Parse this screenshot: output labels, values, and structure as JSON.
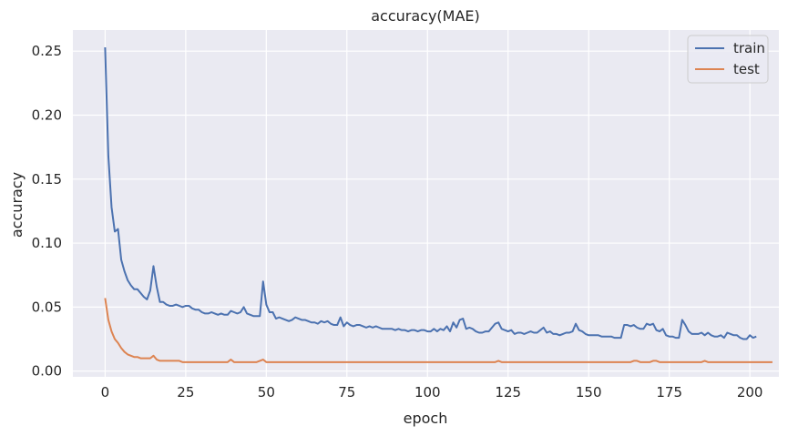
{
  "chart_data": {
    "type": "line",
    "title": "accuracy(MAE)",
    "xlabel": "epoch",
    "ylabel": "accuracy",
    "xlim": [
      -10,
      209
    ],
    "ylim": [
      -0.0045,
      0.2665
    ],
    "grid": true,
    "legend_placement": "top-right",
    "xticks": [
      0,
      25,
      50,
      75,
      100,
      125,
      150,
      175,
      200
    ],
    "yticks": [
      0.0,
      0.05,
      0.1,
      0.15,
      0.2,
      0.25
    ],
    "ytick_labels": [
      "0.00",
      "0.05",
      "0.10",
      "0.15",
      "0.20",
      "0.25"
    ],
    "series": [
      {
        "name": "train",
        "color": "#4c72b0",
        "x_start": 0,
        "x_step": 1,
        "values": [
          0.253,
          0.168,
          0.128,
          0.109,
          0.111,
          0.087,
          0.078,
          0.071,
          0.067,
          0.064,
          0.064,
          0.061,
          0.058,
          0.056,
          0.063,
          0.082,
          0.066,
          0.054,
          0.054,
          0.052,
          0.051,
          0.051,
          0.052,
          0.051,
          0.05,
          0.051,
          0.051,
          0.049,
          0.048,
          0.048,
          0.046,
          0.045,
          0.045,
          0.046,
          0.045,
          0.044,
          0.045,
          0.044,
          0.044,
          0.047,
          0.046,
          0.045,
          0.046,
          0.05,
          0.045,
          0.044,
          0.043,
          0.043,
          0.043,
          0.07,
          0.052,
          0.046,
          0.046,
          0.041,
          0.042,
          0.041,
          0.04,
          0.039,
          0.04,
          0.042,
          0.041,
          0.04,
          0.04,
          0.039,
          0.038,
          0.038,
          0.037,
          0.039,
          0.038,
          0.039,
          0.037,
          0.036,
          0.036,
          0.042,
          0.035,
          0.038,
          0.036,
          0.035,
          0.036,
          0.036,
          0.035,
          0.034,
          0.035,
          0.034,
          0.035,
          0.034,
          0.033,
          0.033,
          0.033,
          0.033,
          0.032,
          0.033,
          0.032,
          0.032,
          0.031,
          0.032,
          0.032,
          0.031,
          0.032,
          0.032,
          0.031,
          0.031,
          0.033,
          0.031,
          0.033,
          0.032,
          0.035,
          0.031,
          0.038,
          0.034,
          0.04,
          0.041,
          0.033,
          0.034,
          0.033,
          0.031,
          0.03,
          0.03,
          0.031,
          0.031,
          0.034,
          0.037,
          0.038,
          0.033,
          0.032,
          0.031,
          0.032,
          0.029,
          0.03,
          0.03,
          0.029,
          0.03,
          0.031,
          0.03,
          0.03,
          0.032,
          0.034,
          0.03,
          0.031,
          0.029,
          0.029,
          0.028,
          0.029,
          0.03,
          0.03,
          0.031,
          0.037,
          0.032,
          0.031,
          0.029,
          0.028,
          0.028,
          0.028,
          0.028,
          0.027,
          0.027,
          0.027,
          0.027,
          0.026,
          0.026,
          0.026,
          0.036,
          0.036,
          0.035,
          0.036,
          0.034,
          0.033,
          0.033,
          0.037,
          0.036,
          0.037,
          0.032,
          0.031,
          0.033,
          0.028,
          0.027,
          0.027,
          0.026,
          0.026,
          0.04,
          0.036,
          0.031,
          0.029,
          0.029,
          0.029,
          0.03,
          0.028,
          0.03,
          0.028,
          0.027,
          0.027,
          0.028,
          0.026,
          0.03,
          0.029,
          0.028,
          0.028,
          0.026,
          0.025,
          0.025,
          0.028,
          0.026,
          0.027
        ]
      },
      {
        "name": "test",
        "color": "#dd8452",
        "x_start": 0,
        "x_step": 1,
        "values": [
          0.057,
          0.04,
          0.031,
          0.025,
          0.022,
          0.018,
          0.015,
          0.013,
          0.012,
          0.011,
          0.011,
          0.01,
          0.01,
          0.01,
          0.01,
          0.012,
          0.009,
          0.008,
          0.008,
          0.008,
          0.008,
          0.008,
          0.008,
          0.008,
          0.007,
          0.007,
          0.007,
          0.007,
          0.007,
          0.007,
          0.007,
          0.007,
          0.007,
          0.007,
          0.007,
          0.007,
          0.007,
          0.007,
          0.007,
          0.009,
          0.007,
          0.007,
          0.007,
          0.007,
          0.007,
          0.007,
          0.007,
          0.007,
          0.008,
          0.009,
          0.007,
          0.007,
          0.007,
          0.007,
          0.007,
          0.007,
          0.007,
          0.007,
          0.007,
          0.007,
          0.007,
          0.007,
          0.007,
          0.007,
          0.007,
          0.007,
          0.007,
          0.007,
          0.007,
          0.007,
          0.007,
          0.007,
          0.007,
          0.007,
          0.007,
          0.007,
          0.007,
          0.007,
          0.007,
          0.007,
          0.007,
          0.007,
          0.007,
          0.007,
          0.007,
          0.007,
          0.007,
          0.007,
          0.007,
          0.007,
          0.007,
          0.007,
          0.007,
          0.007,
          0.007,
          0.007,
          0.007,
          0.007,
          0.007,
          0.007,
          0.007,
          0.007,
          0.007,
          0.007,
          0.007,
          0.007,
          0.007,
          0.007,
          0.007,
          0.007,
          0.007,
          0.007,
          0.007,
          0.007,
          0.007,
          0.007,
          0.007,
          0.007,
          0.007,
          0.007,
          0.007,
          0.007,
          0.008,
          0.007,
          0.007,
          0.007,
          0.007,
          0.007,
          0.007,
          0.007,
          0.007,
          0.007,
          0.007,
          0.007,
          0.007,
          0.007,
          0.007,
          0.007,
          0.007,
          0.007,
          0.007,
          0.007,
          0.007,
          0.007,
          0.007,
          0.007,
          0.007,
          0.007,
          0.007,
          0.007,
          0.007,
          0.007,
          0.007,
          0.007,
          0.007,
          0.007,
          0.007,
          0.007,
          0.007,
          0.007,
          0.007,
          0.007,
          0.007,
          0.007,
          0.008,
          0.008,
          0.007,
          0.007,
          0.007,
          0.007,
          0.008,
          0.008,
          0.007,
          0.007,
          0.007,
          0.007,
          0.007,
          0.007,
          0.007,
          0.007,
          0.007,
          0.007,
          0.007,
          0.007,
          0.007,
          0.007,
          0.008,
          0.007,
          0.007,
          0.007,
          0.007,
          0.007,
          0.007,
          0.007,
          0.007,
          0.007,
          0.007,
          0.007,
          0.007,
          0.007,
          0.007,
          0.007,
          0.007,
          0.007,
          0.007,
          0.007,
          0.007,
          0.007
        ]
      }
    ]
  }
}
